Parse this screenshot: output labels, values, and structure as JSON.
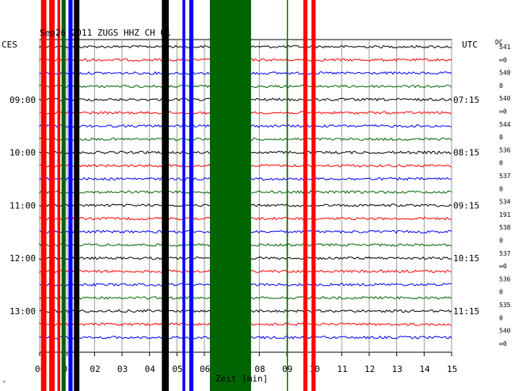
{
  "header": {
    "station_title": "Sep26 2011  ZUGS HHZ CH 01",
    "left_zone": "CES",
    "right_zone": "UTC",
    "dc_label": "DC"
  },
  "footer": {
    "xlabel": "Zeit [min]",
    "corner_mark": "ᴬ"
  },
  "chart_data": {
    "type": "line",
    "title": "Sep26 2011  ZUGS HHZ CH 01",
    "xlabel": "Zeit [min]",
    "x_ticks": [
      "00",
      "01",
      "02",
      "03",
      "04",
      "05",
      "06",
      "07",
      "08",
      "09",
      "10",
      "11",
      "12",
      "13",
      "14",
      "15"
    ],
    "xlim": [
      0,
      15
    ],
    "grid": true,
    "left_times": [
      "09:00",
      "10:00",
      "11:00",
      "12:00",
      "13:00"
    ],
    "right_times": [
      "07:15",
      "08:15",
      "09:15",
      "10:15",
      "11:15"
    ],
    "trace_colors": [
      "#000000",
      "#ff0000",
      "#0000ff",
      "#006400"
    ],
    "dc_values": [
      "541",
      "∞0",
      "548",
      "0",
      "540",
      "∞0",
      "544",
      "0",
      "536",
      "0",
      "537",
      "0",
      "534",
      "191",
      "538",
      "0",
      "537",
      "∞0",
      "536",
      "0",
      "535",
      "0",
      "540",
      "∞0"
    ],
    "num_traces": 23,
    "events": [
      {
        "min_start": 0.05,
        "min_end": 0.25,
        "color": "#ff0000"
      },
      {
        "min_start": 0.35,
        "min_end": 0.55,
        "color": "#ff0000"
      },
      {
        "min_start": 0.65,
        "min_end": 0.75,
        "color": "#ff0000"
      },
      {
        "min_start": 0.8,
        "min_end": 0.95,
        "color": "#006400"
      },
      {
        "min_start": 1.05,
        "min_end": 1.2,
        "color": "#0000ff"
      },
      {
        "min_start": 1.25,
        "min_end": 1.45,
        "color": "#000000"
      },
      {
        "min_start": 4.45,
        "min_end": 4.7,
        "color": "#000000"
      },
      {
        "min_start": 5.2,
        "min_end": 5.3,
        "color": "#0000ff"
      },
      {
        "min_start": 5.45,
        "min_end": 5.6,
        "color": "#0000ff"
      },
      {
        "min_start": 6.2,
        "min_end": 7.7,
        "color": "#006400"
      },
      {
        "min_start": 9.0,
        "min_end": 9.04,
        "color": "#006400"
      },
      {
        "min_start": 9.6,
        "min_end": 9.75,
        "color": "#ff0000"
      },
      {
        "min_start": 9.9,
        "min_end": 10.05,
        "color": "#ff0000"
      }
    ]
  }
}
